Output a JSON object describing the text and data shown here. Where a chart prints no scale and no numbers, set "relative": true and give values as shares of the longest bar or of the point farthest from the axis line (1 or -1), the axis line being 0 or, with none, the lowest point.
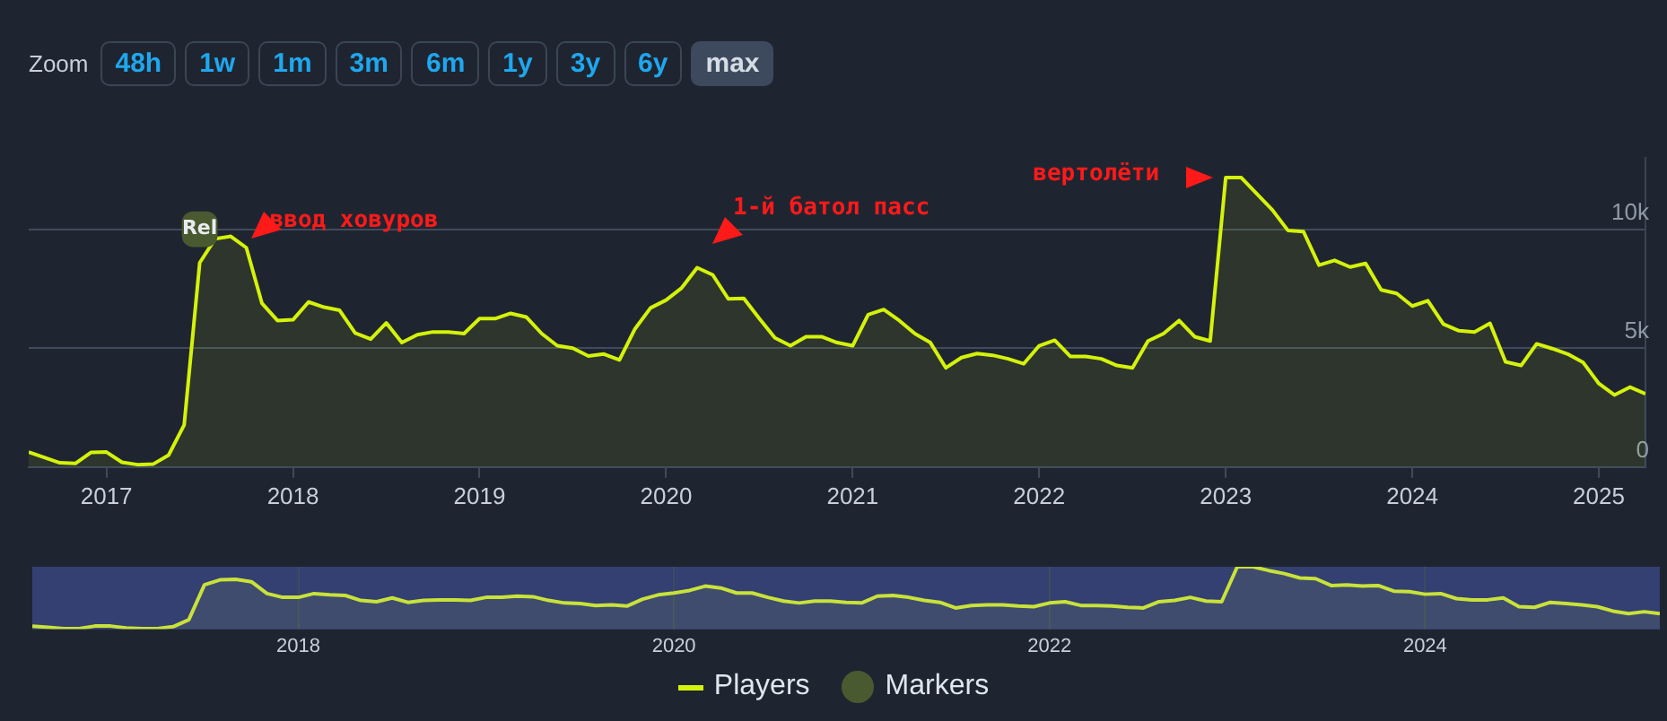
{
  "chart_data": [
    {
      "type": "area",
      "annotations": [
        "Zoom",
        "48h",
        "1w",
        "1m",
        "3m",
        "6m",
        "1y",
        "3y",
        "6y",
        "max",
        {
          "text": "Rel",
          "x": "2017-07",
          "y": 10000
        },
        {
          "text": "ввод ховуров",
          "x": "2017-10",
          "y": 9220
        },
        {
          "text": "1-й батол пасс",
          "x": "2020-03",
          "y": 8380
        },
        {
          "text": "вертолёти",
          "x": "2023-01",
          "y": 12170
        }
      ],
      "x": [
        "2016-08",
        "2016-09",
        "2016-10",
        "2016-11",
        "2016-12",
        "2017-01",
        "2017-02",
        "2017-03",
        "2017-04",
        "2017-05",
        "2017-06",
        "2017-07",
        "2017-08",
        "2017-09",
        "2017-10",
        "2017-11",
        "2017-12",
        "2018-01",
        "2018-02",
        "2018-03",
        "2018-04",
        "2018-05",
        "2018-06",
        "2018-07",
        "2018-08",
        "2018-09",
        "2018-10",
        "2018-11",
        "2018-12",
        "2019-01",
        "2019-02",
        "2019-03",
        "2019-04",
        "2019-05",
        "2019-06",
        "2019-07",
        "2019-08",
        "2019-09",
        "2019-10",
        "2019-11",
        "2019-12",
        "2020-01",
        "2020-02",
        "2020-03",
        "2020-04",
        "2020-05",
        "2020-06",
        "2020-07",
        "2020-08",
        "2020-09",
        "2020-10",
        "2020-11",
        "2020-12",
        "2021-01",
        "2021-02",
        "2021-03",
        "2021-04",
        "2021-05",
        "2021-06",
        "2021-07",
        "2021-08",
        "2021-09",
        "2021-10",
        "2021-11",
        "2021-12",
        "2022-01",
        "2022-02",
        "2022-03",
        "2022-04",
        "2022-05",
        "2022-06",
        "2022-07",
        "2022-08",
        "2022-09",
        "2022-10",
        "2022-11",
        "2022-12",
        "2023-01",
        "2023-02",
        "2023-03",
        "2023-04",
        "2023-05",
        "2023-06",
        "2023-07",
        "2023-08",
        "2023-09",
        "2023-10",
        "2023-11",
        "2023-12",
        "2024-01",
        "2024-02",
        "2024-03",
        "2024-04",
        "2024-05",
        "2024-06",
        "2024-07",
        "2024-08",
        "2024-09",
        "2024-10",
        "2024-11",
        "2024-12",
        "2025-01",
        "2025-02",
        "2025-03",
        "2025-04"
      ],
      "series": [
        {
          "name": "Players",
          "color": "#d4f20a",
          "values": [
            630,
            400,
            180,
            150,
            610,
            630,
            200,
            100,
            120,
            500,
            1770,
            8590,
            9600,
            9700,
            9220,
            6890,
            6160,
            6190,
            6940,
            6720,
            6590,
            5630,
            5380,
            6060,
            5230,
            5560,
            5680,
            5680,
            5610,
            6240,
            6240,
            6460,
            6310,
            5610,
            5100,
            5000,
            4670,
            4750,
            4500,
            5810,
            6690,
            7020,
            7530,
            8380,
            8080,
            7070,
            7090,
            6240,
            5430,
            5100,
            5480,
            5480,
            5230,
            5100,
            6410,
            6620,
            6160,
            5610,
            5230,
            4170,
            4600,
            4770,
            4700,
            4550,
            4340,
            5100,
            5330,
            4650,
            4650,
            4550,
            4270,
            4170,
            5300,
            5610,
            6160,
            5480,
            5300,
            12170,
            12170,
            11490,
            10810,
            9950,
            9900,
            8490,
            8690,
            8410,
            8560,
            7450,
            7300,
            6770,
            6990,
            6010,
            5730,
            5680,
            6040,
            4420,
            4270,
            5180,
            4980,
            4750,
            4390,
            3510,
            3030,
            3360,
            3080
          ]
        },
        {
          "name": "Markers",
          "type": "scatter",
          "color": "#4a5a30",
          "x": [
            "2017-07"
          ],
          "values": [
            10000
          ]
        }
      ],
      "xlim": [
        "2016-08",
        "2025-04"
      ],
      "xticks": [
        "2017",
        "2018",
        "2019",
        "2020",
        "2021",
        "2022",
        "2023",
        "2024",
        "2025"
      ],
      "ylim": [
        0,
        13000
      ],
      "yticks": [
        0,
        {
          "value": 5000,
          "label": "5k"
        },
        {
          "value": 10000,
          "label": "10k"
        }
      ],
      "grid": "y",
      "legend": "bottom"
    },
    {
      "type": "area",
      "x": [
        "2016-08",
        "2016-09",
        "2016-10",
        "2016-11",
        "2016-12",
        "2017-01",
        "2017-02",
        "2017-03",
        "2017-04",
        "2017-05",
        "2017-06",
        "2017-07",
        "2017-08",
        "2017-09",
        "2017-10",
        "2017-11",
        "2017-12",
        "2018-01",
        "2018-02",
        "2018-03",
        "2018-04",
        "2018-05",
        "2018-06",
        "2018-07",
        "2018-08",
        "2018-09",
        "2018-10",
        "2018-11",
        "2018-12",
        "2019-01",
        "2019-02",
        "2019-03",
        "2019-04",
        "2019-05",
        "2019-06",
        "2019-07",
        "2019-08",
        "2019-09",
        "2019-10",
        "2019-11",
        "2019-12",
        "2020-01",
        "2020-02",
        "2020-03",
        "2020-04",
        "2020-05",
        "2020-06",
        "2020-07",
        "2020-08",
        "2020-09",
        "2020-10",
        "2020-11",
        "2020-12",
        "2021-01",
        "2021-02",
        "2021-03",
        "2021-04",
        "2021-05",
        "2021-06",
        "2021-07",
        "2021-08",
        "2021-09",
        "2021-10",
        "2021-11",
        "2021-12",
        "2022-01",
        "2022-02",
        "2022-03",
        "2022-04",
        "2022-05",
        "2022-06",
        "2022-07",
        "2022-08",
        "2022-09",
        "2022-10",
        "2022-11",
        "2022-12",
        "2023-01",
        "2023-02",
        "2023-03",
        "2023-04",
        "2023-05",
        "2023-06",
        "2023-07",
        "2023-08",
        "2023-09",
        "2023-10",
        "2023-11",
        "2023-12",
        "2024-01",
        "2024-02",
        "2024-03",
        "2024-04",
        "2024-05",
        "2024-06",
        "2024-07",
        "2024-08",
        "2024-09",
        "2024-10",
        "2024-11",
        "2024-12",
        "2025-01",
        "2025-02",
        "2025-03",
        "2025-04"
      ],
      "series": [
        {
          "color": "#c8e23a",
          "values": [
            0.05,
            0.03,
            0.01,
            0.01,
            0.05,
            0.05,
            0.02,
            0.01,
            0.01,
            0.04,
            0.15,
            0.71,
            0.79,
            0.8,
            0.76,
            0.57,
            0.51,
            0.51,
            0.57,
            0.55,
            0.54,
            0.46,
            0.44,
            0.5,
            0.43,
            0.46,
            0.47,
            0.47,
            0.46,
            0.51,
            0.51,
            0.53,
            0.52,
            0.46,
            0.42,
            0.41,
            0.38,
            0.39,
            0.37,
            0.48,
            0.55,
            0.58,
            0.62,
            0.69,
            0.66,
            0.58,
            0.58,
            0.51,
            0.45,
            0.42,
            0.45,
            0.45,
            0.43,
            0.42,
            0.53,
            0.54,
            0.51,
            0.46,
            0.43,
            0.34,
            0.38,
            0.39,
            0.39,
            0.37,
            0.36,
            0.42,
            0.44,
            0.38,
            0.38,
            0.37,
            0.35,
            0.34,
            0.44,
            0.46,
            0.51,
            0.45,
            0.44,
            1,
            1,
            0.94,
            0.89,
            0.82,
            0.81,
            0.7,
            0.71,
            0.69,
            0.7,
            0.61,
            0.6,
            0.56,
            0.57,
            0.49,
            0.47,
            0.47,
            0.5,
            0.36,
            0.35,
            0.43,
            0.41,
            0.39,
            0.36,
            0.29,
            0.25,
            0.28,
            0.25
          ]
        }
      ],
      "xlim": [
        "2016-08",
        "2025-04"
      ],
      "xticks": [
        "2018",
        "2020",
        "2022",
        "2024"
      ],
      "relative": true,
      "grid": "x",
      "tick_labels": "x"
    }
  ]
}
